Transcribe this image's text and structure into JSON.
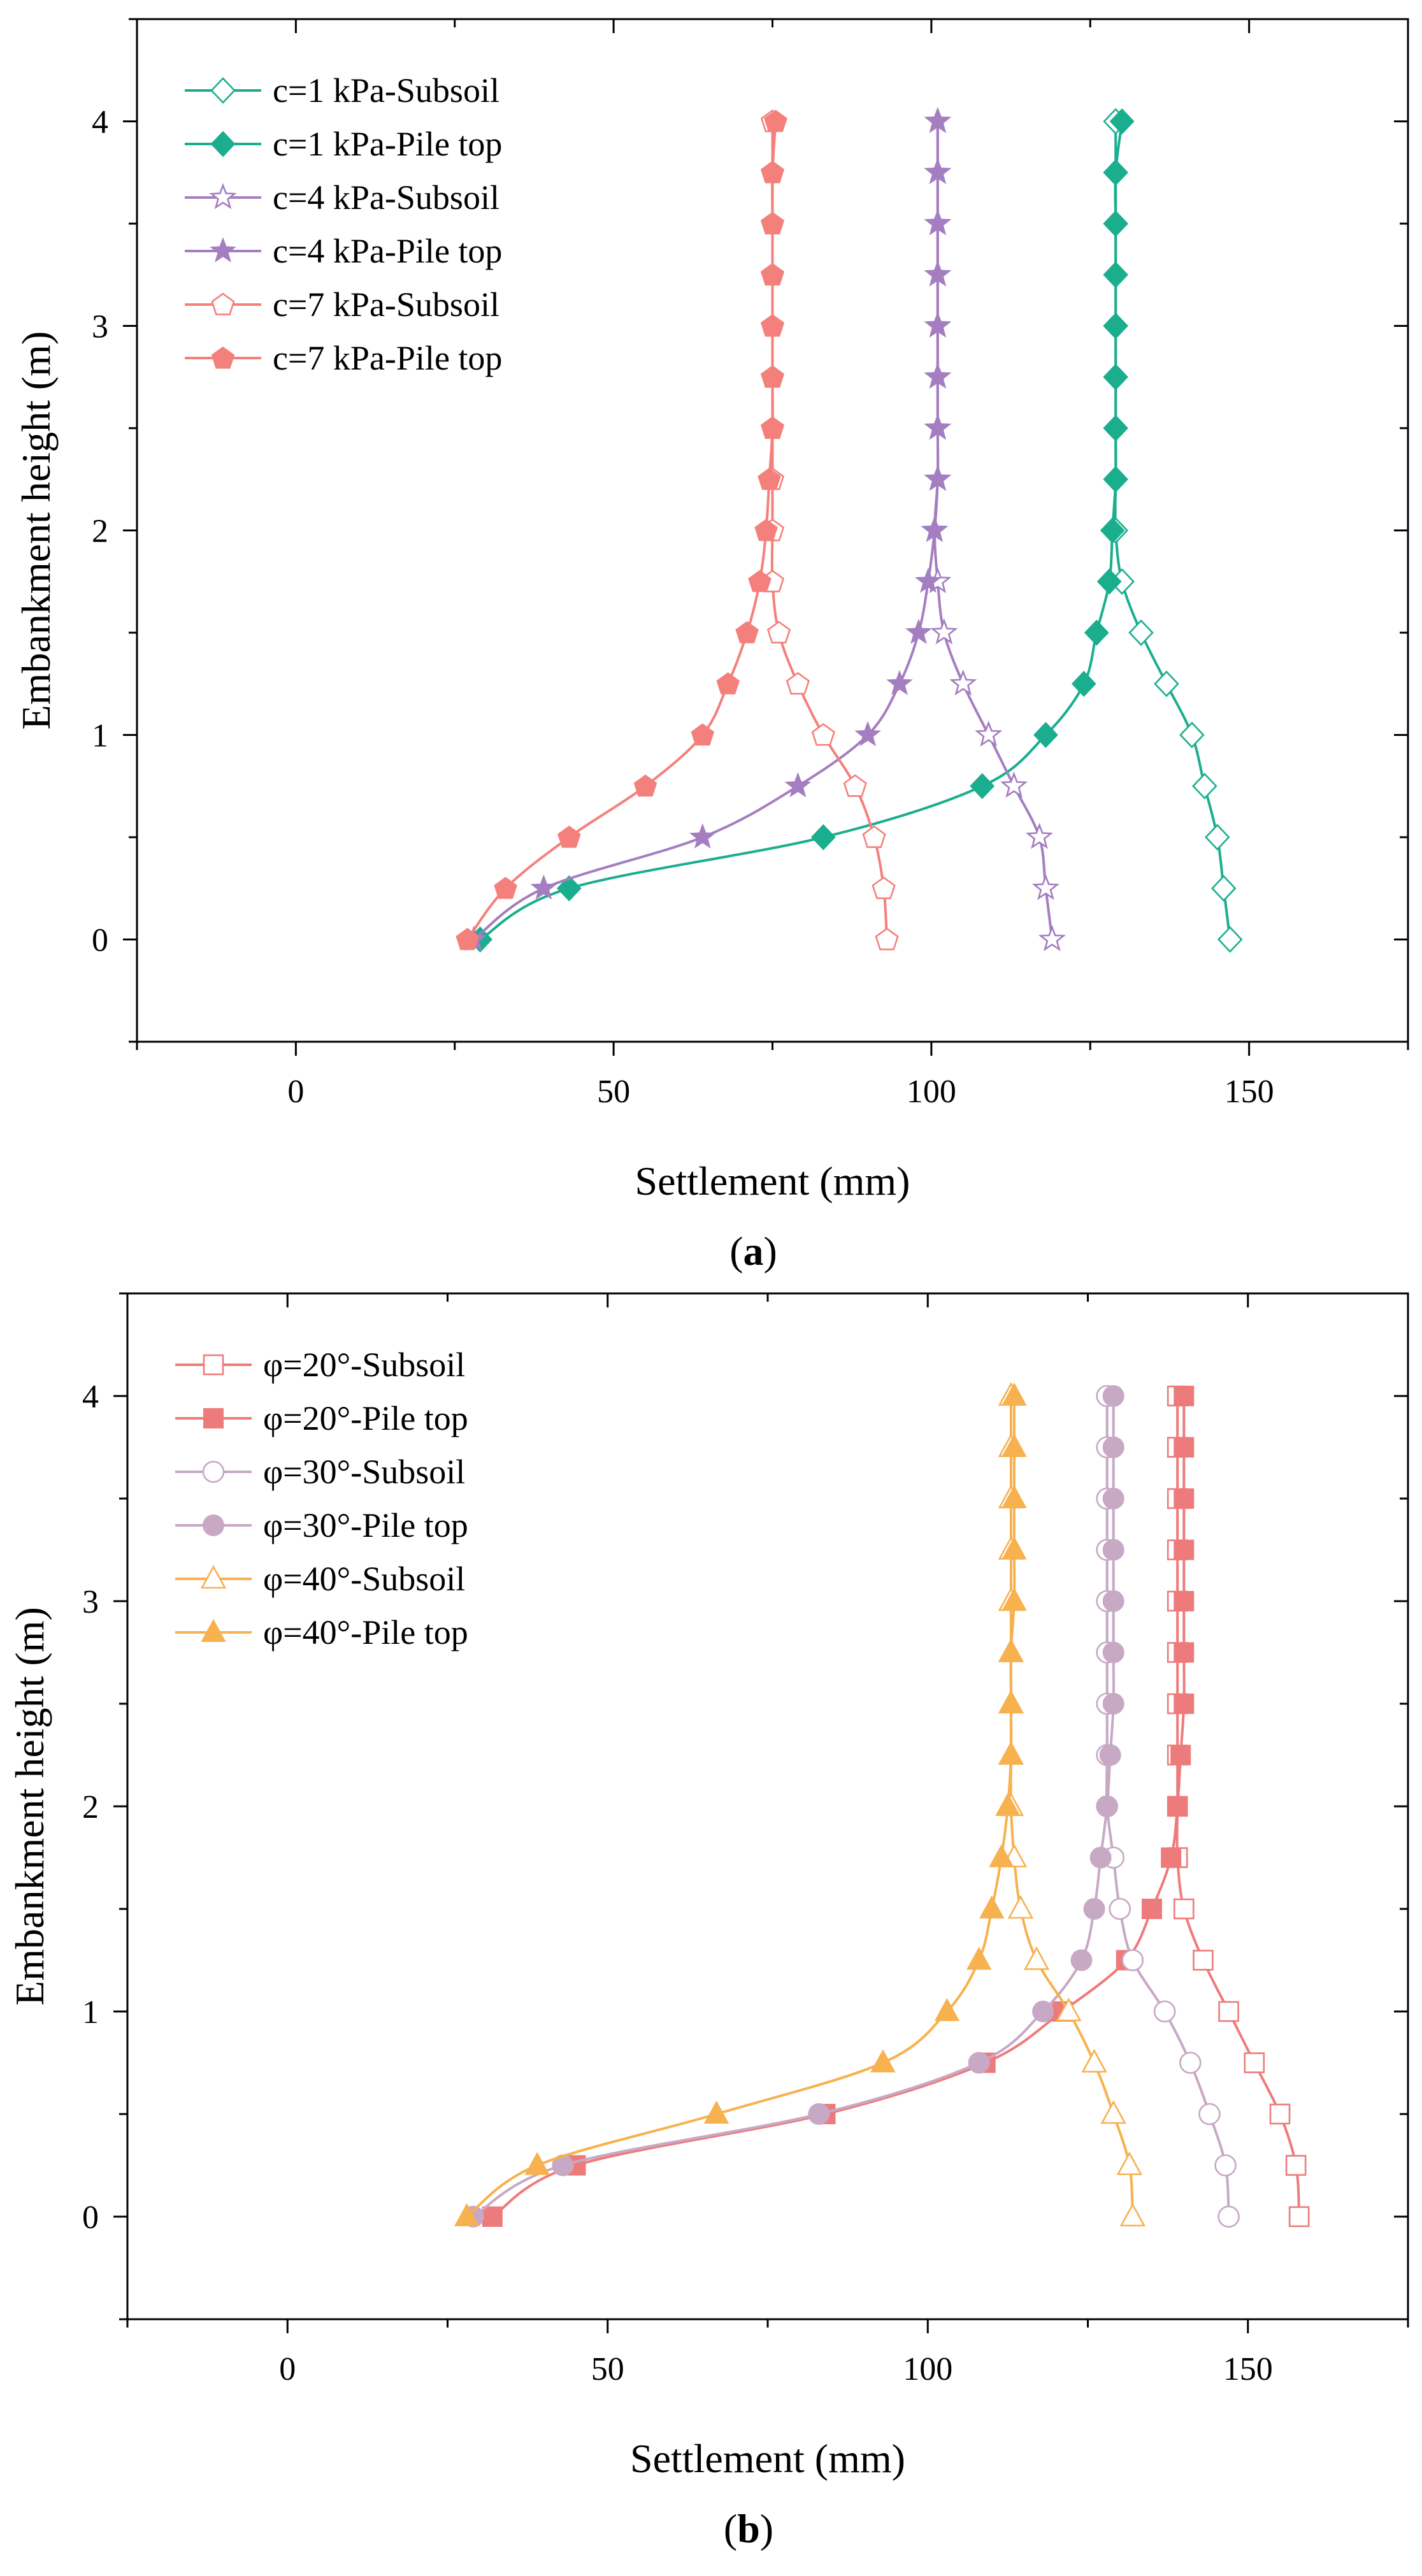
{
  "chart_data": [
    {
      "id": "a",
      "type": "line",
      "caption_open": "(",
      "caption_letter": "a",
      "caption_close": ")",
      "xlabel": "Settlement (mm)",
      "ylabel": "Embankment height (m)",
      "xlim": [
        -25,
        175
      ],
      "ylim": [
        -0.5,
        4.5
      ],
      "xticks": [
        0,
        50,
        100,
        150
      ],
      "yticks": [
        0,
        1,
        2,
        3,
        4
      ],
      "legend_position": "top-left",
      "grid": false,
      "series": [
        {
          "name": "c=1 kPa-Subsoil",
          "color": "#1aae8f",
          "marker": "diamond",
          "filled": false,
          "x": [
            147,
            146,
            145,
            143,
            141,
            137,
            133,
            130,
            129,
            129,
            129,
            129,
            129,
            129,
            129,
            129,
            129
          ],
          "y": [
            0,
            0.25,
            0.5,
            0.75,
            1.0,
            1.25,
            1.5,
            1.75,
            2.0,
            2.25,
            2.5,
            2.75,
            3.0,
            3.25,
            3.5,
            3.75,
            4.0
          ]
        },
        {
          "name": "c=1 kPa-Pile top",
          "color": "#1aae8f",
          "marker": "diamond",
          "filled": true,
          "x": [
            29,
            43,
            83,
            108,
            118,
            124,
            126,
            128,
            128.5,
            129,
            129,
            129,
            129,
            129,
            129,
            129,
            130
          ],
          "y": [
            0,
            0.25,
            0.5,
            0.75,
            1.0,
            1.25,
            1.5,
            1.75,
            2.0,
            2.25,
            2.5,
            2.75,
            3.0,
            3.25,
            3.5,
            3.75,
            4.0
          ]
        },
        {
          "name": "c=4 kPa-Subsoil",
          "color": "#a47ec0",
          "marker": "star",
          "filled": false,
          "x": [
            119,
            118,
            117,
            113,
            109,
            105,
            102,
            101,
            100.5,
            101,
            101,
            101,
            101,
            101,
            101,
            101,
            101
          ],
          "y": [
            0,
            0.25,
            0.5,
            0.75,
            1.0,
            1.25,
            1.5,
            1.75,
            2.0,
            2.25,
            2.5,
            2.75,
            3.0,
            3.25,
            3.5,
            3.75,
            4.0
          ]
        },
        {
          "name": "c=4 kPa-Pile top",
          "color": "#a47ec0",
          "marker": "star",
          "filled": true,
          "x": [
            28,
            39,
            64,
            79,
            90,
            95,
            98,
            99.5,
            100.5,
            101,
            101,
            101,
            101,
            101,
            101,
            101,
            101
          ],
          "y": [
            0,
            0.25,
            0.5,
            0.75,
            1.0,
            1.25,
            1.5,
            1.75,
            2.0,
            2.25,
            2.5,
            2.75,
            3.0,
            3.25,
            3.5,
            3.75,
            4.0
          ]
        },
        {
          "name": "c=7 kPa-Subsoil",
          "color": "#f4807c",
          "marker": "pentagon",
          "filled": false,
          "x": [
            93,
            92.5,
            91,
            88,
            83,
            79,
            76,
            75,
            75,
            75,
            75,
            75,
            75,
            75,
            75,
            75,
            75
          ],
          "y": [
            0,
            0.25,
            0.5,
            0.75,
            1.0,
            1.25,
            1.5,
            1.75,
            2.0,
            2.25,
            2.5,
            2.75,
            3.0,
            3.25,
            3.5,
            3.75,
            4.0
          ]
        },
        {
          "name": "c=7 kPa-Pile top",
          "color": "#f4807c",
          "marker": "pentagon",
          "filled": true,
          "x": [
            27,
            33,
            43,
            55,
            64,
            68,
            71,
            73,
            74,
            74.5,
            75,
            75,
            75,
            75,
            75,
            75,
            75.5
          ],
          "y": [
            0,
            0.25,
            0.5,
            0.75,
            1.0,
            1.25,
            1.5,
            1.75,
            2.0,
            2.25,
            2.5,
            2.75,
            3.0,
            3.25,
            3.5,
            3.75,
            4.0
          ]
        }
      ]
    },
    {
      "id": "b",
      "type": "line",
      "caption_open": "(",
      "caption_letter": "b",
      "caption_close": ")",
      "xlabel": "Settlement (mm)",
      "ylabel": "Embankment height (m)",
      "xlim": [
        -25,
        175
      ],
      "ylim": [
        -0.5,
        4.5
      ],
      "xticks": [
        0,
        50,
        100,
        150
      ],
      "yticks": [
        0,
        1,
        2,
        3,
        4
      ],
      "legend_position": "top-left",
      "grid": false,
      "series": [
        {
          "name": "φ=20°-Subsoil",
          "color": "#ee7b7b",
          "marker": "square",
          "filled": false,
          "x": [
            158,
            157.5,
            155,
            151,
            147,
            143,
            140,
            139,
            139,
            139,
            139,
            139,
            139,
            139,
            139,
            139,
            139
          ],
          "y": [
            0,
            0.25,
            0.5,
            0.75,
            1.0,
            1.25,
            1.5,
            1.75,
            2.0,
            2.25,
            2.5,
            2.75,
            3.0,
            3.25,
            3.5,
            3.75,
            4.0
          ]
        },
        {
          "name": "φ=20°-Pile top",
          "color": "#ee7b7b",
          "marker": "square",
          "filled": true,
          "x": [
            32,
            45,
            84,
            109,
            121,
            131,
            135,
            138,
            139,
            139.5,
            140,
            140,
            140,
            140,
            140,
            140,
            140
          ],
          "y": [
            0,
            0.25,
            0.5,
            0.75,
            1.0,
            1.25,
            1.5,
            1.75,
            2.0,
            2.25,
            2.5,
            2.75,
            3.0,
            3.25,
            3.5,
            3.75,
            4.0
          ]
        },
        {
          "name": "φ=30°-Subsoil",
          "color": "#c7a8c5",
          "marker": "circle",
          "filled": false,
          "x": [
            147,
            146.5,
            144,
            141,
            137,
            132,
            130,
            129,
            128,
            128,
            128,
            128,
            128,
            128,
            128,
            128,
            128
          ],
          "y": [
            0,
            0.25,
            0.5,
            0.75,
            1.0,
            1.25,
            1.5,
            1.75,
            2.0,
            2.25,
            2.5,
            2.75,
            3.0,
            3.25,
            3.5,
            3.75,
            4.0
          ]
        },
        {
          "name": "φ=30°-Pile top",
          "color": "#c7a8c5",
          "marker": "circle",
          "filled": true,
          "x": [
            29,
            43,
            83,
            108,
            118,
            124,
            126,
            127,
            128,
            128.5,
            129,
            129,
            129,
            129,
            129,
            129,
            129
          ],
          "y": [
            0,
            0.25,
            0.5,
            0.75,
            1.0,
            1.25,
            1.5,
            1.75,
            2.0,
            2.25,
            2.5,
            2.75,
            3.0,
            3.25,
            3.5,
            3.75,
            4.0
          ]
        },
        {
          "name": "φ=40°-Subsoil",
          "color": "#f7b14e",
          "marker": "triangle",
          "filled": false,
          "x": [
            132,
            131.5,
            129,
            126,
            122,
            117,
            114.5,
            113.5,
            113,
            113,
            113,
            113,
            113,
            113,
            113,
            113,
            113
          ],
          "y": [
            0,
            0.25,
            0.5,
            0.75,
            1.0,
            1.25,
            1.5,
            1.75,
            2.0,
            2.25,
            2.5,
            2.75,
            3.0,
            3.25,
            3.5,
            3.75,
            4.0
          ]
        },
        {
          "name": "φ=40°-Pile top",
          "color": "#f7b14e",
          "marker": "triangle",
          "filled": true,
          "x": [
            28,
            39,
            67,
            93,
            103,
            108,
            110,
            111.5,
            112.5,
            113,
            113,
            113,
            113.5,
            113.5,
            113.5,
            113.5,
            113.5
          ],
          "y": [
            0,
            0.25,
            0.5,
            0.75,
            1.0,
            1.25,
            1.5,
            1.75,
            2.0,
            2.25,
            2.5,
            2.75,
            3.0,
            3.25,
            3.5,
            3.75,
            4.0
          ]
        }
      ]
    }
  ]
}
